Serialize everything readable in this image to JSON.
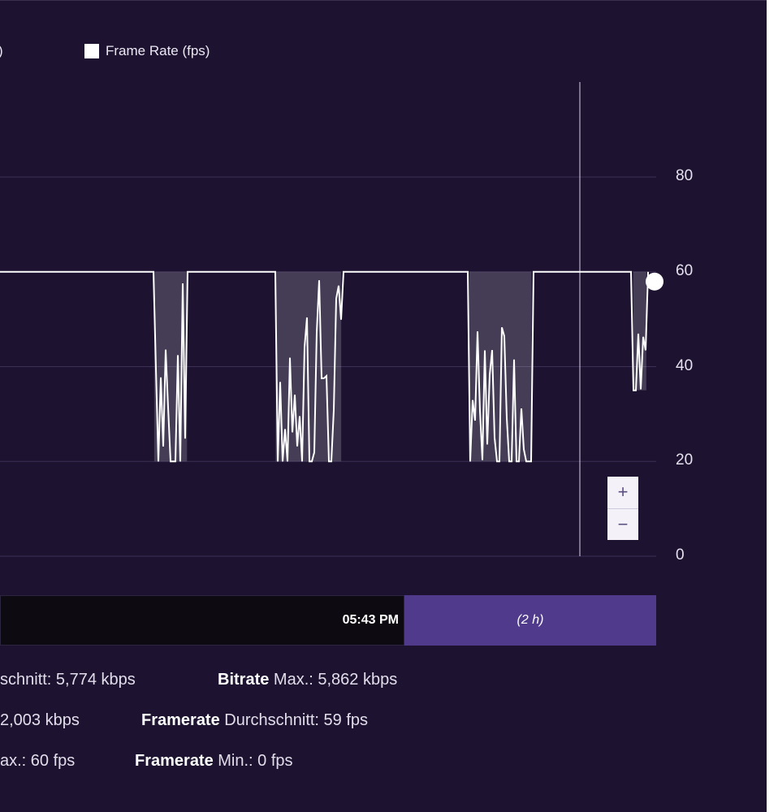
{
  "legend": {
    "left_fragment": ")",
    "frame_rate_label": "Frame Rate (fps)"
  },
  "chart_data": {
    "type": "line",
    "series": [
      {
        "name": "Frame Rate (fps)",
        "color": "#ffffff"
      }
    ],
    "yticks": [
      "80",
      "60",
      "40",
      "20",
      "0"
    ],
    "ylim": [
      0,
      100
    ],
    "grid": true,
    "baseline": 60,
    "drops": [
      {
        "start": 0.235,
        "end": 0.285,
        "min": 20
      },
      {
        "start": 0.42,
        "end": 0.52,
        "min": 20
      },
      {
        "start": 0.715,
        "end": 0.81,
        "min": 20
      },
      {
        "start": 0.965,
        "end": 0.985,
        "min": 35
      }
    ]
  },
  "zoom": {
    "plus": "+",
    "minus": "−"
  },
  "timebar": {
    "time": "05:43 PM",
    "range": "(2 h)"
  },
  "stats": {
    "row1_left": "schnitt: 5,774 kbps",
    "row1_right_bold": "Bitrate",
    "row1_right": " Max.: 5,862 kbps",
    "row2_left": "2,003 kbps",
    "row2_right_bold": "Framerate",
    "row2_right": " Durchschnitt: 59 fps",
    "row3_left": "ax.: 60 fps",
    "row3_right_bold": "Framerate",
    "row3_right": " Min.: 0 fps"
  },
  "colors": {
    "background": "#1d1330",
    "line": "#ffffff",
    "accent": "#4f3a8c"
  }
}
